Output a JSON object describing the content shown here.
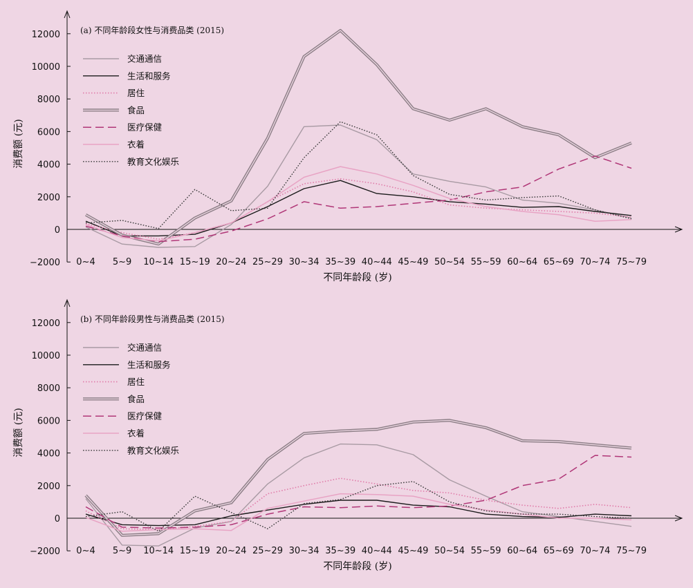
{
  "chart_data": [
    {
      "type": "line",
      "title": "(a) 不同年龄段女性与消费品类 (2015)",
      "xlabel": "不同年龄段 (岁)",
      "ylabel": "消费额 (元)",
      "ylim": [
        -2000,
        13000
      ],
      "yticks": [
        -2000,
        0,
        2000,
        4000,
        6000,
        8000,
        10000,
        12000
      ],
      "categories": [
        "0~4",
        "5~9",
        "10~14",
        "15~19",
        "20~24",
        "25~29",
        "30~34",
        "35~39",
        "40~44",
        "45~49",
        "50~54",
        "55~59",
        "60~64",
        "65~69",
        "70~74",
        "75~79"
      ],
      "legend_position": "top-left",
      "series": [
        {
          "name": "交通通信",
          "style": "traffic",
          "values": [
            150,
            -900,
            -1100,
            -1050,
            300,
            2650,
            6300,
            6400,
            5500,
            3400,
            2950,
            2600,
            1800,
            1600,
            1200,
            700
          ]
        },
        {
          "name": "生活和服务",
          "style": "life",
          "values": [
            500,
            -400,
            -400,
            -300,
            400,
            1400,
            2500,
            3000,
            2200,
            2000,
            1700,
            1550,
            1350,
            1400,
            1100,
            850
          ]
        },
        {
          "name": "居住",
          "style": "housing",
          "values": [
            350,
            -200,
            -600,
            -200,
            400,
            1700,
            2800,
            3100,
            2800,
            2300,
            1500,
            1300,
            1200,
            1100,
            1000,
            750
          ]
        },
        {
          "name": "食品",
          "style": "food",
          "values": [
            900,
            -350,
            -900,
            700,
            1750,
            5600,
            10600,
            12200,
            10100,
            7400,
            6700,
            7400,
            6300,
            5800,
            4400,
            5300
          ]
        },
        {
          "name": "医疗保健",
          "style": "medical",
          "values": [
            200,
            -400,
            -750,
            -600,
            -100,
            650,
            1700,
            1300,
            1400,
            1600,
            1800,
            2300,
            2600,
            3700,
            4500,
            3750
          ]
        },
        {
          "name": "衣着",
          "style": "clothing",
          "values": [
            300,
            -500,
            -700,
            -200,
            400,
            1700,
            3200,
            3850,
            3400,
            2700,
            1900,
            1400,
            1100,
            900,
            500,
            600
          ]
        },
        {
          "name": "教育文化娱乐",
          "style": "education",
          "values": [
            400,
            550,
            50,
            2450,
            1150,
            1300,
            4400,
            6600,
            5800,
            3300,
            2150,
            1800,
            1950,
            2050,
            1200,
            650
          ]
        }
      ]
    },
    {
      "type": "line",
      "title": "(b) 不同年龄段男性与消费品类 (2015)",
      "xlabel": "不同年龄段 (岁)",
      "ylabel": "消费额 (元)",
      "ylim": [
        -2000,
        13000
      ],
      "yticks": [
        -2000,
        0,
        2000,
        4000,
        6000,
        8000,
        10000,
        12000
      ],
      "categories": [
        "0~4",
        "5~9",
        "10~14",
        "15~19",
        "20~24",
        "25~29",
        "30~34",
        "35~39",
        "40~44",
        "45~49",
        "50~54",
        "55~59",
        "60~64",
        "65~69",
        "70~74",
        "75~79"
      ],
      "legend_position": "top-left",
      "series": [
        {
          "name": "交通通信",
          "style": "traffic",
          "values": [
            1200,
            -1650,
            -1700,
            -600,
            -200,
            2100,
            3700,
            4550,
            4500,
            3900,
            2350,
            1350,
            400,
            100,
            -200,
            -500
          ]
        },
        {
          "name": "生活和服务",
          "style": "life",
          "values": [
            250,
            -400,
            -450,
            -400,
            150,
            500,
            850,
            1100,
            1100,
            800,
            700,
            250,
            100,
            50,
            250,
            150
          ]
        },
        {
          "name": "居住",
          "style": "housing",
          "values": [
            450,
            -650,
            -700,
            -500,
            -200,
            1500,
            2000,
            2450,
            2100,
            1700,
            1550,
            1100,
            800,
            600,
            850,
            650
          ]
        },
        {
          "name": "食品",
          "style": "food",
          "values": [
            1400,
            -1050,
            -950,
            450,
            950,
            3600,
            5200,
            5350,
            5450,
            5900,
            6000,
            5550,
            4750,
            4700,
            4500,
            4300
          ]
        },
        {
          "name": "医疗保健",
          "style": "medical",
          "values": [
            700,
            -550,
            -600,
            -550,
            -400,
            250,
            700,
            650,
            750,
            650,
            750,
            1100,
            2000,
            2400,
            3850,
            3750
          ]
        },
        {
          "name": "衣着",
          "style": "clothing",
          "values": [
            50,
            -800,
            -700,
            -650,
            -750,
            600,
            1050,
            1500,
            1450,
            1350,
            850,
            500,
            250,
            0,
            0,
            -100
          ]
        },
        {
          "name": "教育文化娱乐",
          "style": "education",
          "values": [
            100,
            400,
            -800,
            1350,
            350,
            -650,
            900,
            1150,
            2000,
            2250,
            1000,
            450,
            250,
            250,
            100,
            0
          ]
        }
      ]
    }
  ]
}
